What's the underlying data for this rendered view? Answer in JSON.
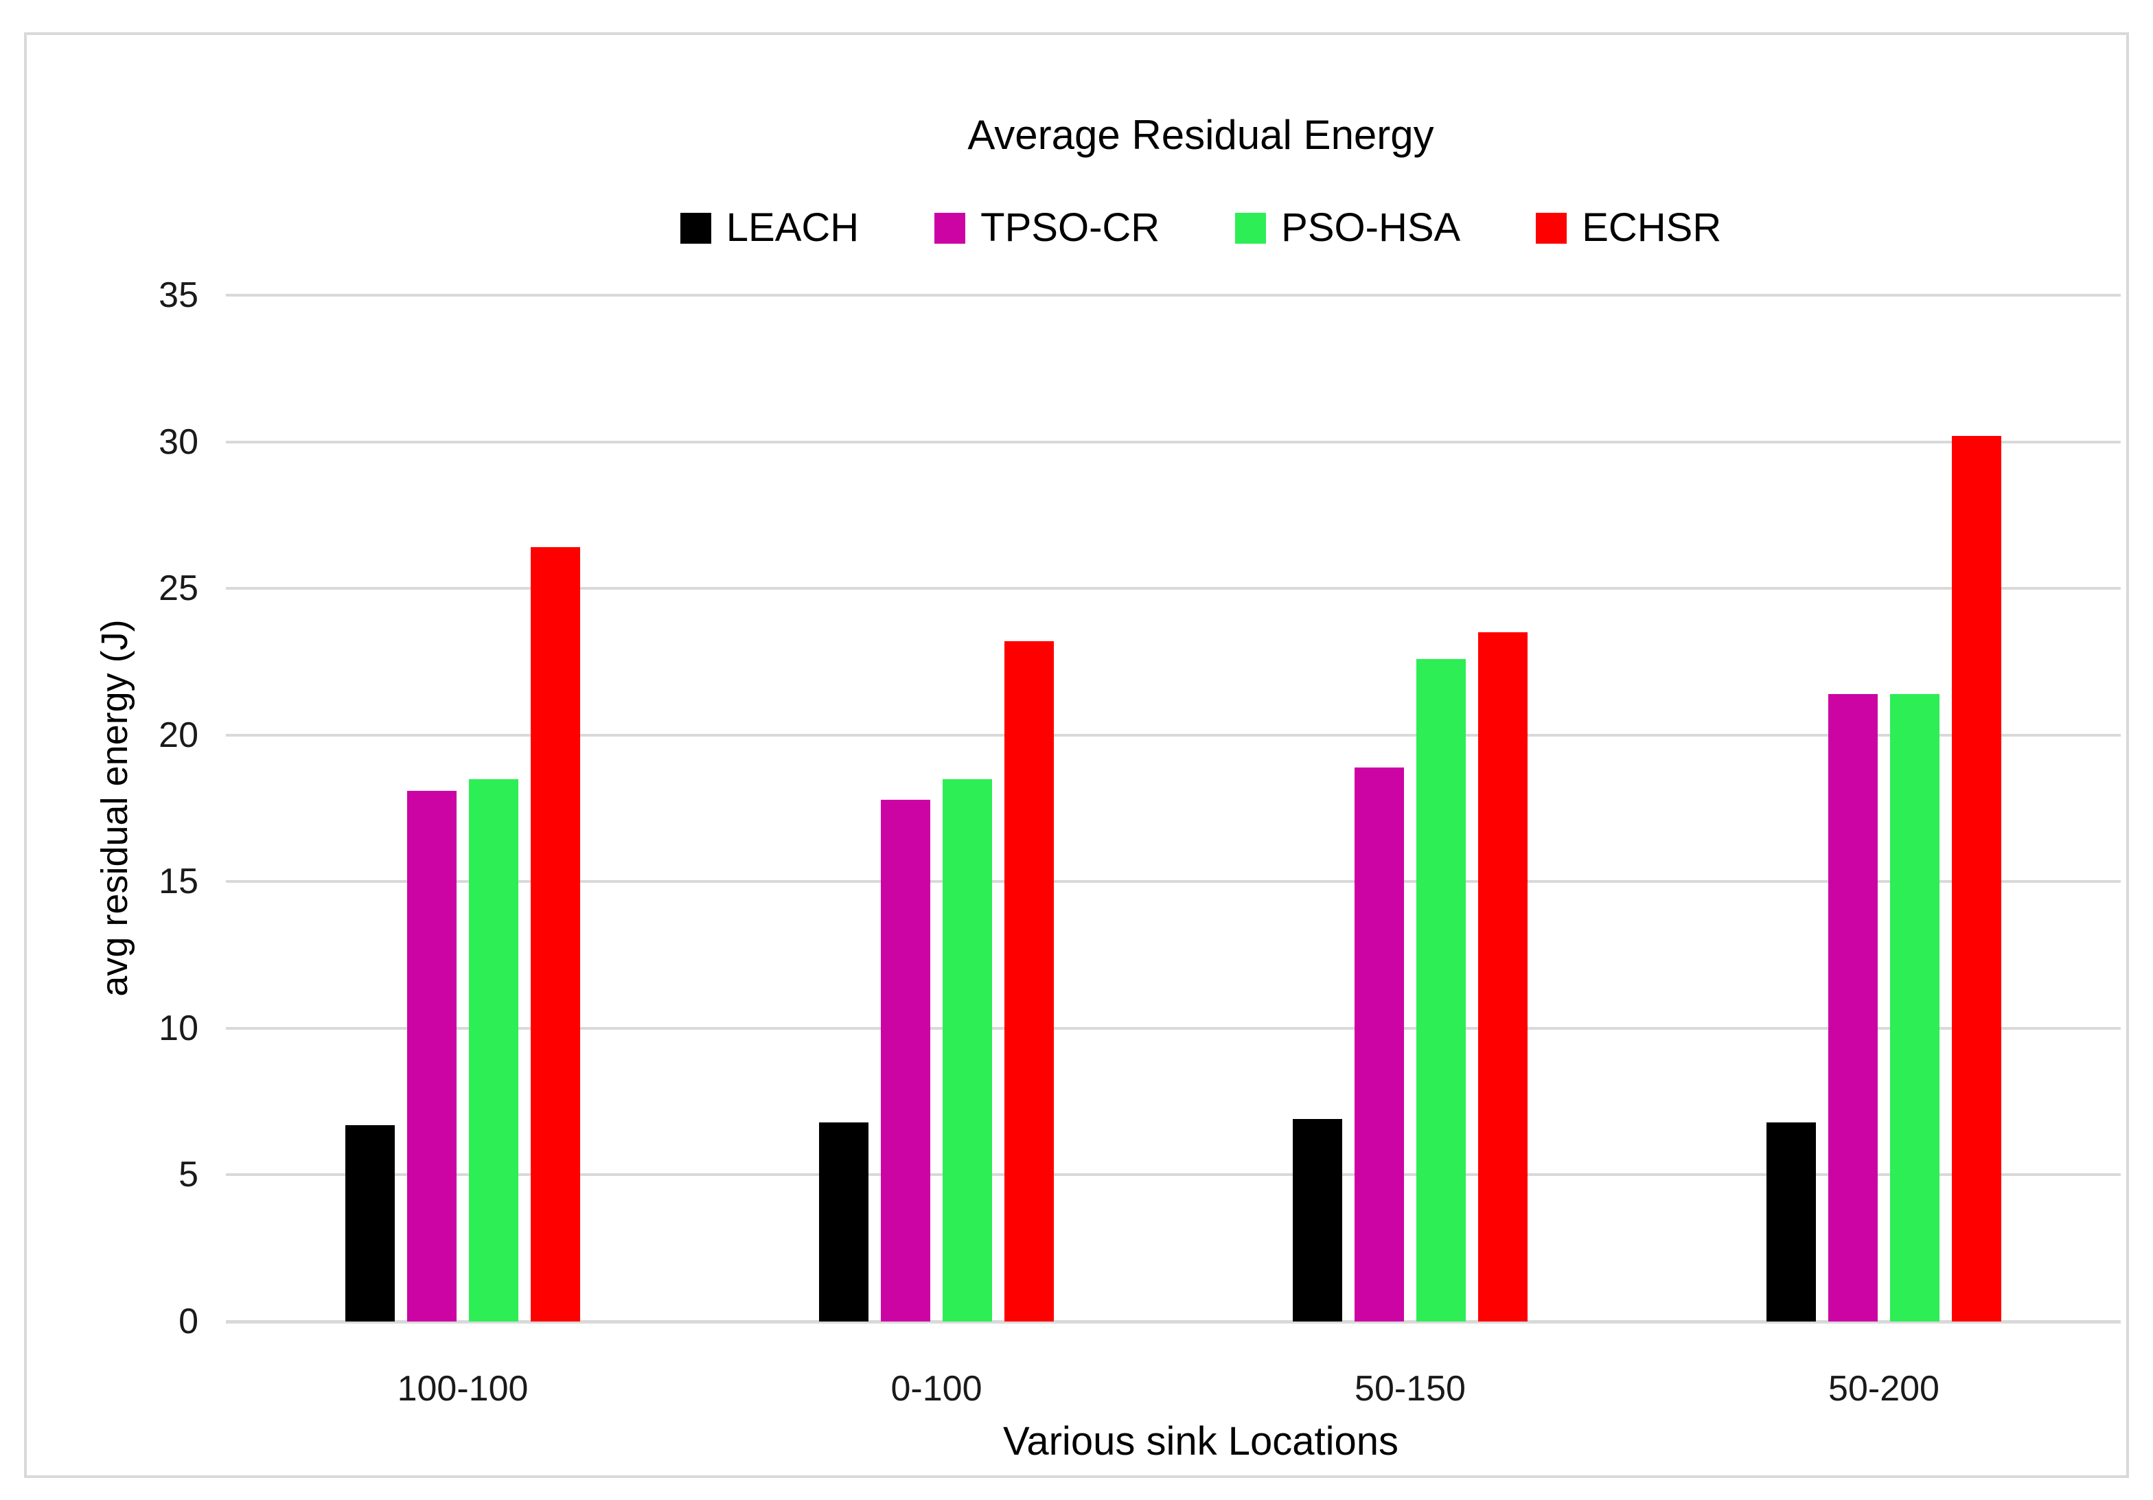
{
  "figure": {
    "background_color": "#FFFFFF",
    "border_color": "#D9D9D9"
  },
  "chart_data": {
    "type": "bar",
    "title": "Average Residual Energy",
    "xlabel": "Various sink Locations",
    "ylabel": "avg residual energy (J)",
    "categories": [
      "100-100",
      "0-100",
      "50-150",
      "50-200"
    ],
    "series": [
      {
        "name": "LEACH",
        "color": "#000000",
        "values": [
          6.7,
          6.8,
          6.9,
          6.8
        ]
      },
      {
        "name": "TPSO-CR",
        "color": "#CC04A4",
        "values": [
          18.1,
          17.8,
          18.9,
          21.4
        ]
      },
      {
        "name": "PSO-HSA",
        "color": "#2DEE55",
        "values": [
          18.5,
          18.5,
          22.6,
          21.4
        ]
      },
      {
        "name": "ECHSR",
        "color": "#FF0000",
        "values": [
          26.4,
          23.2,
          23.5,
          30.2
        ]
      }
    ],
    "ylim": [
      0,
      35
    ],
    "ytick_step": 5,
    "ytick_labels": [
      "0",
      "5",
      "10",
      "15",
      "20",
      "25",
      "30",
      "35"
    ],
    "grid": "horizontal",
    "gridline_color": "#D9D9D9",
    "legend_position": "top-center"
  }
}
